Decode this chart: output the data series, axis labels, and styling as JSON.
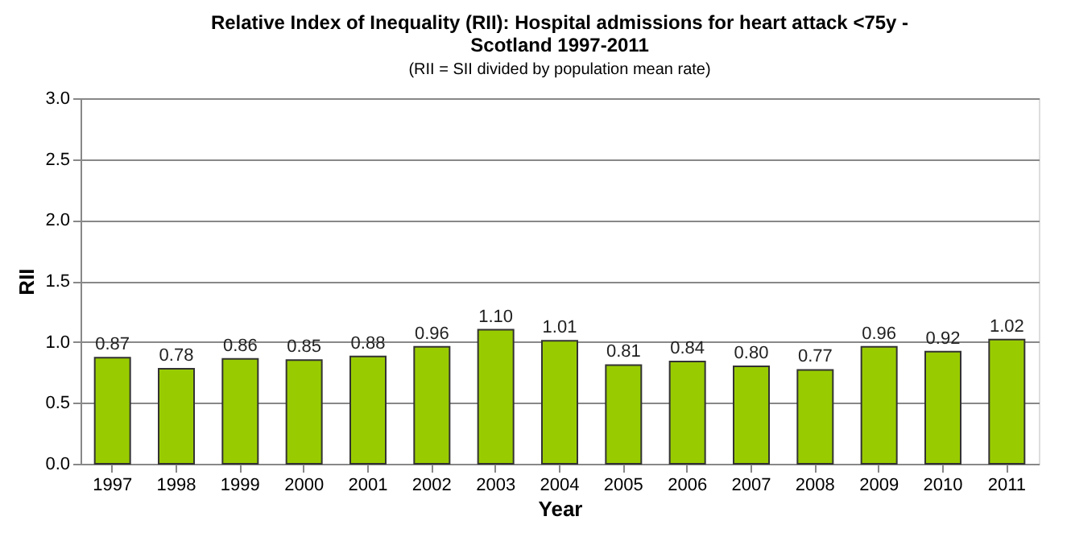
{
  "chart_data": {
    "type": "bar",
    "title": "Relative Index of Inequality (RII):  Hospital admissions for heart attack <75y -\nScotland 1997-2011",
    "subtitle": "(RII = SII divided by population mean rate)",
    "xlabel": "Year",
    "ylabel": "RII",
    "categories": [
      "1997",
      "1998",
      "1999",
      "2000",
      "2001",
      "2002",
      "2003",
      "2004",
      "2005",
      "2006",
      "2007",
      "2008",
      "2009",
      "2010",
      "2011"
    ],
    "values": [
      0.87,
      0.78,
      0.86,
      0.85,
      0.88,
      0.96,
      1.1,
      1.01,
      0.81,
      0.84,
      0.8,
      0.77,
      0.96,
      0.92,
      1.02
    ],
    "color": "#99cc00",
    "ylim": [
      0,
      3
    ],
    "yticks": [
      {
        "value": 0,
        "label": "0.0"
      },
      {
        "value": 0.5,
        "label": "0.5"
      },
      {
        "value": 1,
        "label": "1.0"
      },
      {
        "value": 1.5,
        "label": "1.5"
      },
      {
        "value": 2,
        "label": "2.0"
      },
      {
        "value": 2.5,
        "label": "2.5"
      },
      {
        "value": 3,
        "label": "3.0"
      }
    ],
    "value_labels": [
      "0.87",
      "0.78",
      "0.86",
      "0.85",
      "0.88",
      "0.96",
      "1.10",
      "1.01",
      "0.81",
      "0.84",
      "0.80",
      "0.77",
      "0.96",
      "0.92",
      "1.02"
    ],
    "grid": "y"
  }
}
